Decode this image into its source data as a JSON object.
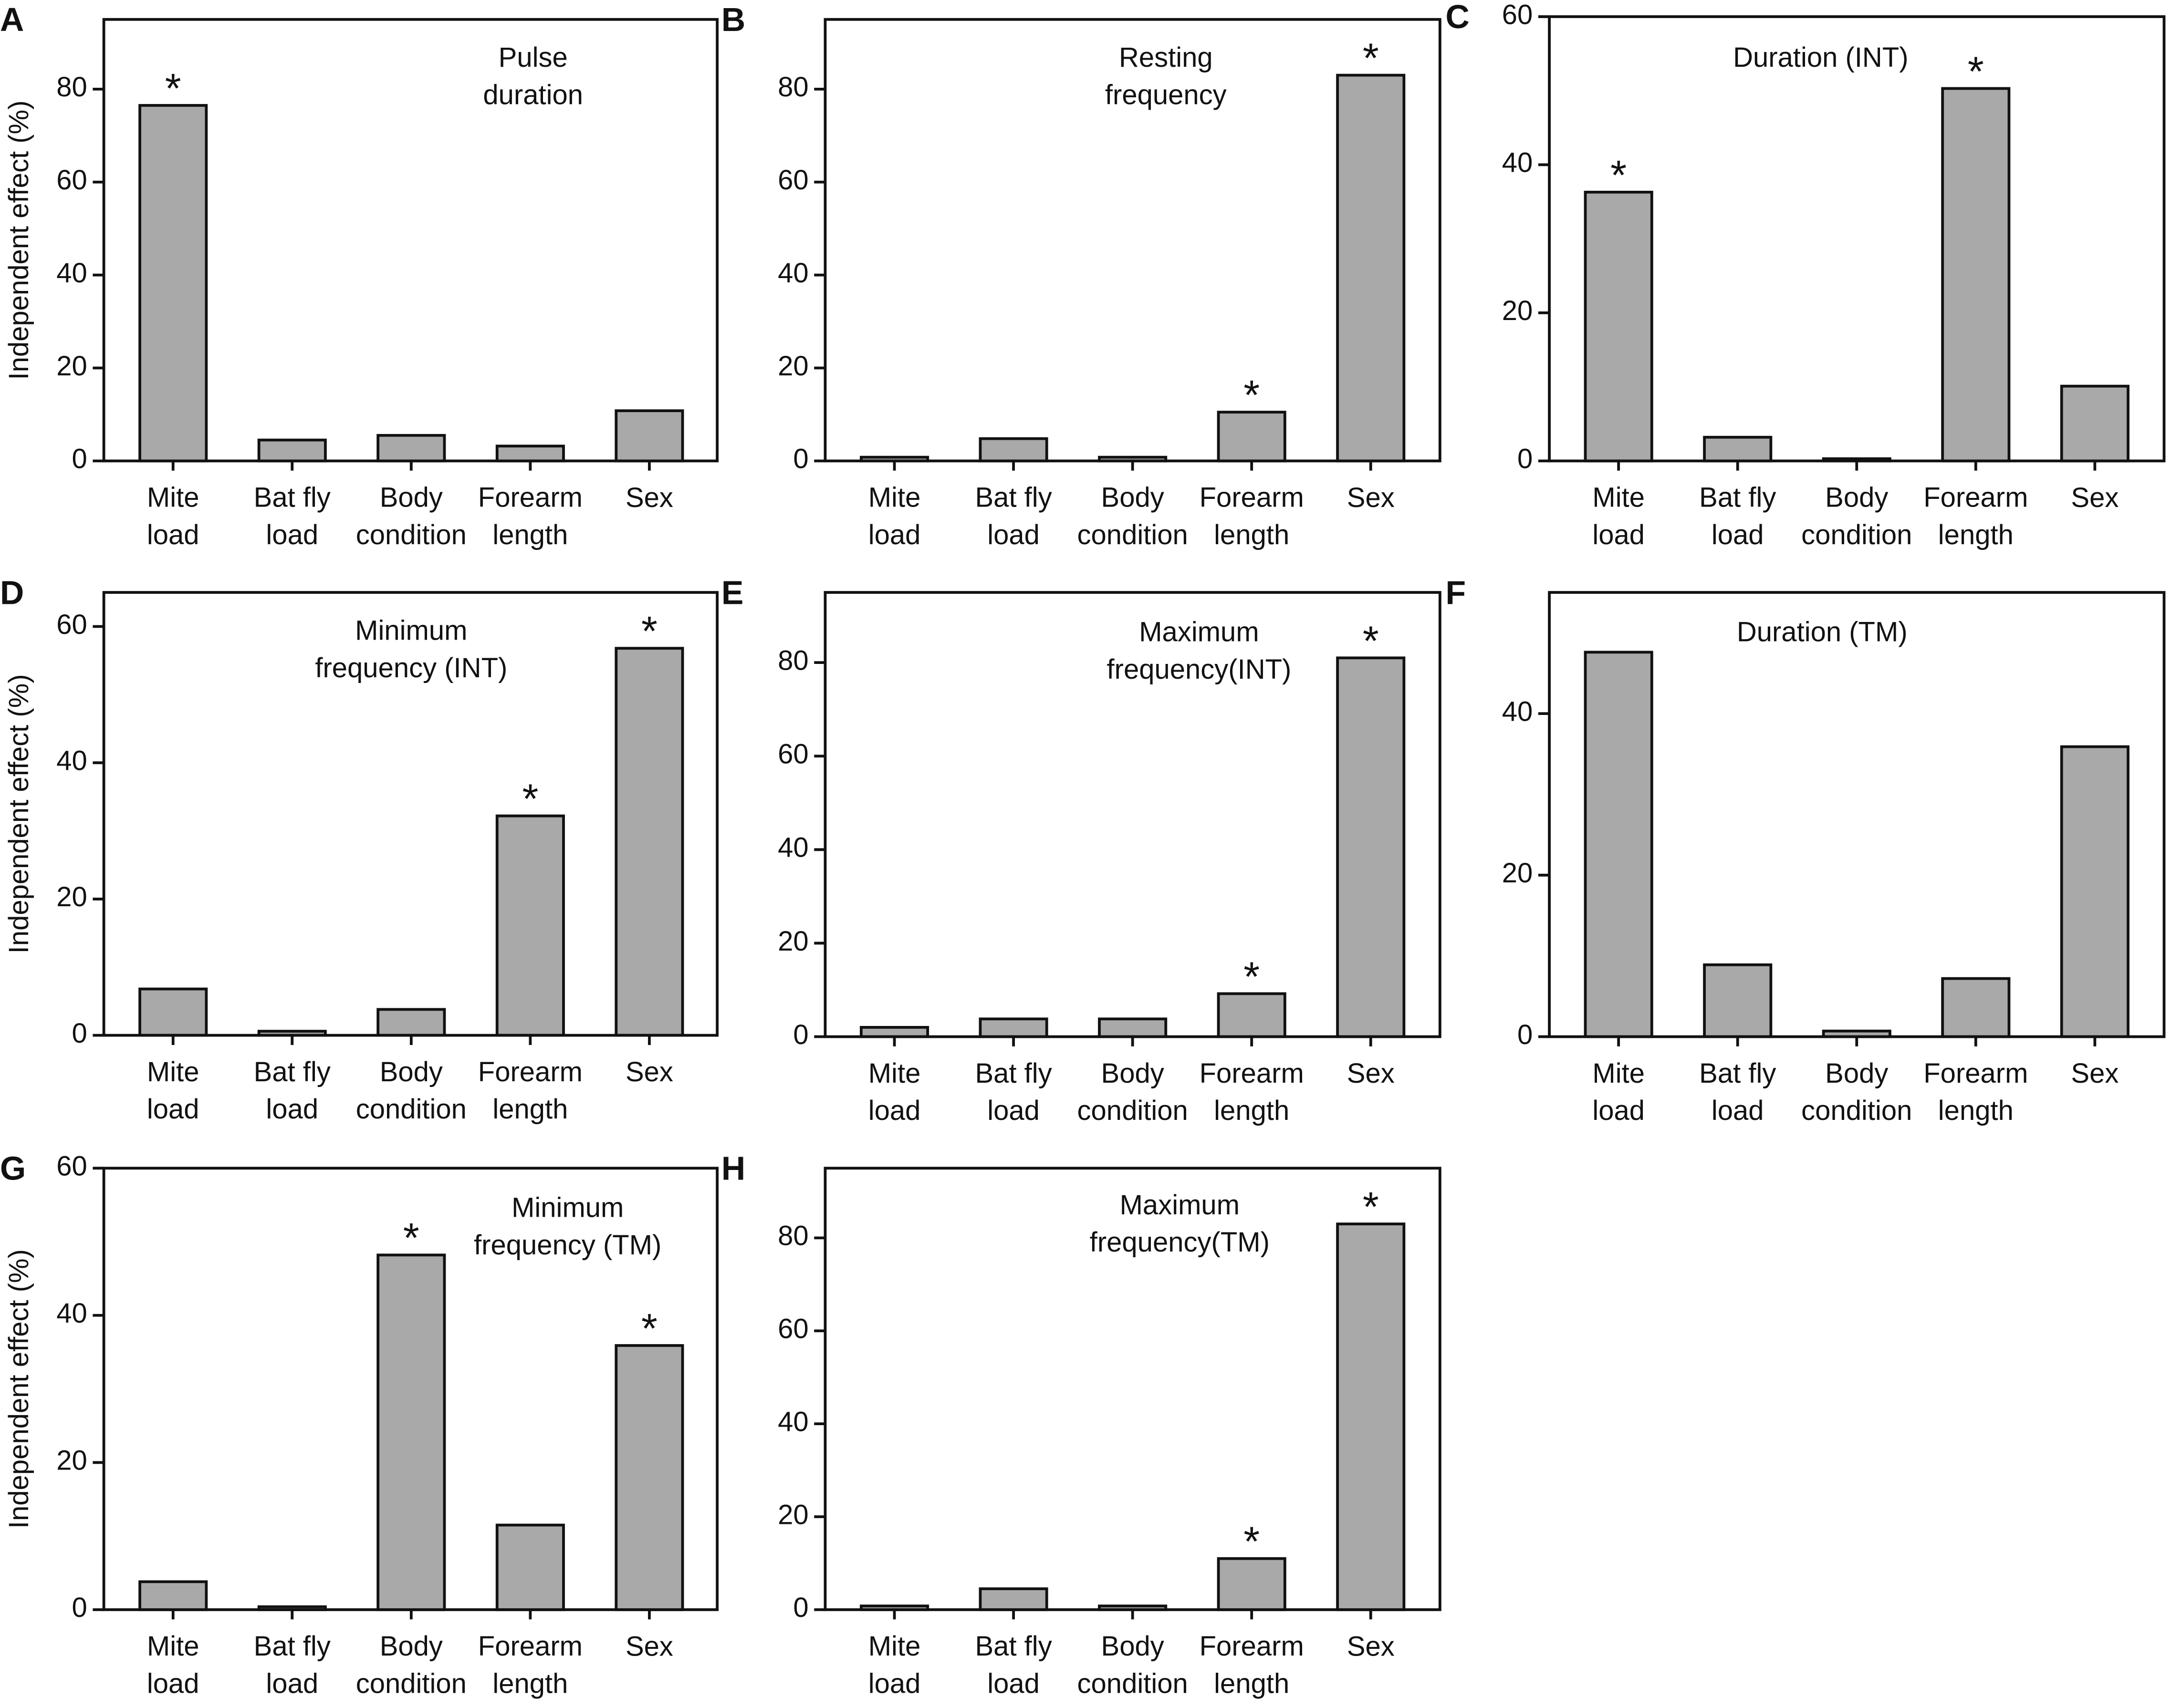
{
  "chart_data": [
    {
      "type": "bar",
      "panel": "A",
      "title": [
        "Pulse",
        "duration"
      ],
      "ylabel": "Independent effect  (%)",
      "categories": [
        "Mite load",
        "Bat fly load",
        "Body condition",
        "Forearm length",
        "Sex"
      ],
      "values": [
        76.5,
        4.5,
        5.5,
        3.2,
        10.8
      ],
      "significance": [
        "*",
        null,
        null,
        null,
        null
      ],
      "color": "#a9a9a9",
      "ylim": [
        0,
        95
      ],
      "yticks": [
        0,
        20,
        40,
        60,
        80
      ]
    },
    {
      "type": "bar",
      "panel": "B",
      "title": [
        "Resting",
        "frequency"
      ],
      "categories": [
        "Mite load",
        "Bat fly load",
        "Body condition",
        "Forearm length",
        "Sex"
      ],
      "values": [
        0.8,
        4.8,
        0.8,
        10.5,
        83
      ],
      "significance": [
        null,
        null,
        null,
        "*",
        "*"
      ],
      "color": "#a9a9a9",
      "ylim": [
        0,
        95
      ],
      "yticks": [
        0,
        20,
        40,
        60,
        80
      ]
    },
    {
      "type": "bar",
      "panel": "C",
      "title": [
        "Duration (INT)"
      ],
      "categories": [
        "Mite load",
        "Bat fly load",
        "Body condition",
        "Forearm length",
        "Sex"
      ],
      "values": [
        36.3,
        3.2,
        0.3,
        50.3,
        10.1
      ],
      "significance": [
        "*",
        null,
        null,
        "*",
        null
      ],
      "color": "#a9a9a9",
      "ylim": [
        0,
        60
      ],
      "yticks": [
        0,
        20,
        40,
        60
      ]
    },
    {
      "type": "bar",
      "panel": "D",
      "title": [
        "Minimum",
        "frequency (INT)"
      ],
      "ylabel": "Independent effect  (%)",
      "categories": [
        "Mite load",
        "Bat fly load",
        "Body condition",
        "Forearm length",
        "Sex"
      ],
      "values": [
        6.8,
        0.6,
        3.8,
        32.2,
        56.8
      ],
      "significance": [
        null,
        null,
        null,
        "*",
        "*"
      ],
      "color": "#a9a9a9",
      "ylim": [
        0,
        65
      ],
      "yticks": [
        0,
        20,
        40,
        60
      ]
    },
    {
      "type": "bar",
      "panel": "E",
      "title": [
        "Maximum",
        "frequency(INT)"
      ],
      "categories": [
        "Mite load",
        "Bat fly load",
        "Body condition",
        "Forearm length",
        "Sex"
      ],
      "values": [
        2,
        3.8,
        3.8,
        9.2,
        81
      ],
      "significance": [
        null,
        null,
        null,
        "*",
        "*"
      ],
      "color": "#a9a9a9",
      "ylim": [
        0,
        95
      ],
      "yticks": [
        0,
        20,
        40,
        60,
        80
      ]
    },
    {
      "type": "bar",
      "panel": "F",
      "title": [
        "Duration (TM)"
      ],
      "categories": [
        "Mite load",
        "Bat fly load",
        "Body condition",
        "Forearm length",
        "Sex"
      ],
      "values": [
        47.6,
        8.9,
        0.7,
        7.2,
        35.9
      ],
      "significance": [
        null,
        null,
        null,
        null,
        null
      ],
      "color": "#a9a9a9",
      "ylim": [
        0,
        55
      ],
      "yticks": [
        0,
        20,
        40
      ]
    },
    {
      "type": "bar",
      "panel": "G",
      "title": [
        "Minimum",
        "frequency (TM)"
      ],
      "ylabel": "Independent effect  (%)",
      "categories": [
        "Mite load",
        "Bat fly load",
        "Body condition",
        "Forearm length",
        "Sex"
      ],
      "values": [
        3.8,
        0.4,
        48.2,
        11.5,
        35.9
      ],
      "significance": [
        null,
        null,
        "*",
        null,
        "*"
      ],
      "color": "#a9a9a9",
      "ylim": [
        0,
        60
      ],
      "yticks": [
        0,
        20,
        40,
        60
      ]
    },
    {
      "type": "bar",
      "panel": "H",
      "title": [
        "Maximum",
        "frequency(TM)"
      ],
      "categories": [
        "Mite load",
        "Bat fly load",
        "Body condition",
        "Forearm length",
        "Sex"
      ],
      "values": [
        0.8,
        4.5,
        0.8,
        11,
        83
      ],
      "significance": [
        null,
        null,
        null,
        "*",
        "*"
      ],
      "color": "#a9a9a9",
      "ylim": [
        0,
        95
      ],
      "yticks": [
        0,
        20,
        40,
        60,
        80
      ]
    }
  ]
}
